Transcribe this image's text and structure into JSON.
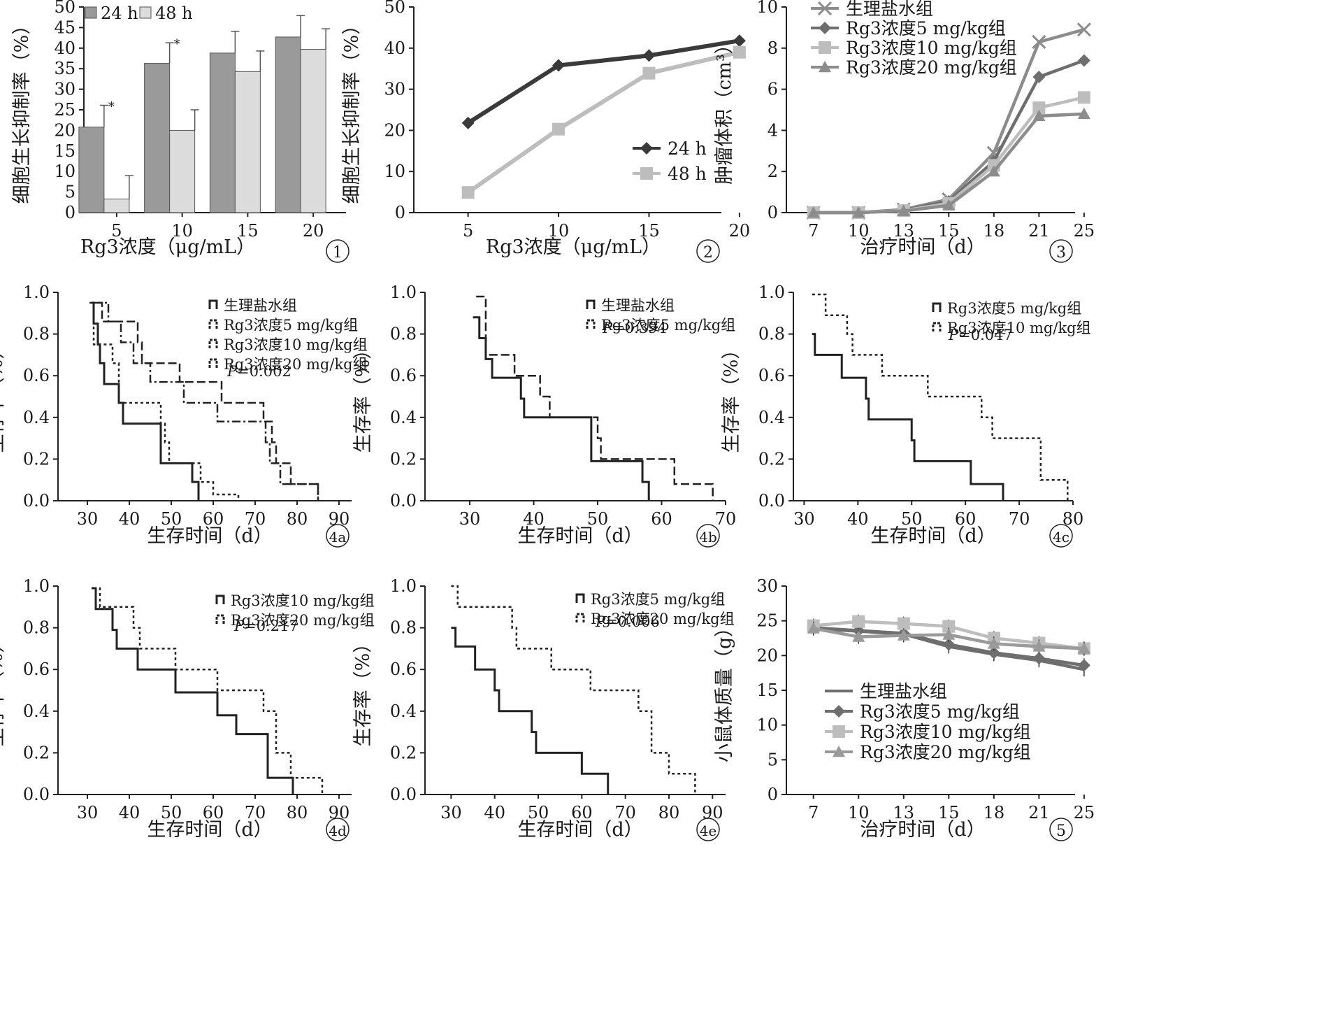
{
  "colors": {
    "dark": "#3a3a3a",
    "mid": "#6e6e6e",
    "gray": "#8c8c8c",
    "light": "#bdbdbd",
    "bar_dark": "#9a9a9a",
    "bar_light": "#dcdcdc"
  },
  "chart_data": [
    {
      "id": "1",
      "type": "bar",
      "panel_label": "①",
      "xlabel": "Rg3浓度（μg/mL）",
      "ylabel": "细胞生长抑制率（%）",
      "categories": [
        "5",
        "10",
        "15",
        "20"
      ],
      "yticks": [
        "0",
        "5",
        "10",
        "15",
        "20",
        "25",
        "30",
        "35",
        "40",
        "45",
        "50"
      ],
      "ylim": [
        0,
        50
      ],
      "legend_position": "top-left",
      "series": [
        {
          "name": "24 h",
          "values": [
            20.8,
            36.3,
            38.8,
            42.7
          ],
          "errors": [
            5.3,
            5.0,
            5.3,
            5.2
          ],
          "color": "#9a9a9a"
        },
        {
          "name": "48 h",
          "values": [
            3.3,
            20.0,
            34.3,
            39.7
          ],
          "errors": [
            5.7,
            5.0,
            5.0,
            5.0
          ],
          "color": "#dcdcdc"
        }
      ],
      "annotations": [
        {
          "text": "*",
          "category": "5",
          "series": "24 h"
        },
        {
          "text": "*",
          "category": "10",
          "series": "24 h"
        }
      ]
    },
    {
      "id": "2",
      "type": "line",
      "panel_label": "②",
      "xlabel": "Rg3浓度（μg/mL）",
      "ylabel": "细胞生长抑制率（%）",
      "x": [
        "5",
        "10",
        "15",
        "20"
      ],
      "yticks": [
        "0",
        "10",
        "20",
        "30",
        "40",
        "50"
      ],
      "ylim": [
        0,
        50
      ],
      "legend_position": "center-right",
      "series": [
        {
          "name": "24 h",
          "values": [
            21.8,
            35.8,
            38.2,
            41.8
          ],
          "color": "#3a3a3a",
          "marker": "diamond"
        },
        {
          "name": "48 h",
          "values": [
            4.9,
            20.3,
            33.9,
            39.0
          ],
          "color": "#bdbdbd",
          "marker": "square"
        }
      ]
    },
    {
      "id": "3",
      "type": "line",
      "panel_label": "③",
      "xlabel": "治疗时间（d）",
      "ylabel": "肿瘤体积（cm³）",
      "x": [
        "7",
        "10",
        "13",
        "15",
        "18",
        "21",
        "25"
      ],
      "yticks": [
        "0",
        "2",
        "4",
        "6",
        "8",
        "10"
      ],
      "ylim": [
        0,
        10
      ],
      "legend_position": "top-left",
      "series": [
        {
          "name": "生理盐水组",
          "values": [
            0,
            0,
            0.15,
            0.65,
            2.9,
            8.3,
            8.9
          ],
          "color": "#8c8c8c",
          "marker": "x"
        },
        {
          "name": "Rg3浓度5 mg/kg组",
          "values": [
            0,
            0,
            0.12,
            0.55,
            2.5,
            6.6,
            7.4
          ],
          "color": "#6e6e6e",
          "marker": "diamond"
        },
        {
          "name": "Rg3浓度10 mg/kg组",
          "values": [
            0,
            0,
            0.1,
            0.45,
            2.3,
            5.1,
            5.6
          ],
          "color": "#bdbdbd",
          "marker": "square"
        },
        {
          "name": "Rg3浓度20 mg/kg组",
          "values": [
            0,
            0,
            0.08,
            0.35,
            2.0,
            4.7,
            4.8
          ],
          "color": "#8c8c8c",
          "marker": "triangle"
        }
      ]
    },
    {
      "id": "4a",
      "type": "line",
      "panel_label": "4a",
      "xlabel": "生存时间（d）",
      "ylabel": "生存率（%）",
      "xticks": [
        "30",
        "40",
        "50",
        "60",
        "70",
        "80",
        "90"
      ],
      "xlim": [
        23,
        93
      ],
      "yticks": [
        "0.0",
        "0.2",
        "0.4",
        "0.6",
        "0.8",
        "1.0"
      ],
      "ylim": [
        0,
        1
      ],
      "legend_position": "top-right",
      "p_value": {
        "prefix": "P",
        "value": "=0.002"
      },
      "series": [
        {
          "name": "生理盐水组",
          "style": "solid",
          "points": [
            [
              31,
              0.95
            ],
            [
              31.5,
              0.85
            ],
            [
              32.5,
              0.75
            ],
            [
              33,
              0.66
            ],
            [
              34,
              0.56
            ],
            [
              37.5,
              0.47
            ],
            [
              38.5,
              0.37
            ],
            [
              47.5,
              0.18
            ],
            [
              55,
              0.09
            ],
            [
              56.5,
              0
            ]
          ]
        },
        {
          "name": "Rg3浓度5 mg/kg组",
          "style": "dash",
          "points": [
            [
              32.5,
              0.95
            ],
            [
              33.5,
              0.86
            ],
            [
              42,
              0.76
            ],
            [
              43,
              0.66
            ],
            [
              52,
              0.57
            ],
            [
              62,
              0.47
            ],
            [
              72,
              0.38
            ],
            [
              74,
              0.28
            ],
            [
              75,
              0.18
            ],
            [
              78.5,
              0.08
            ],
            [
              85,
              0
            ]
          ]
        },
        {
          "name": "Rg3浓度10 mg/kg组",
          "style": "dot",
          "points": [
            [
              30.5,
              0.95
            ],
            [
              31.5,
              0.75
            ],
            [
              36,
              0.66
            ],
            [
              37.5,
              0.47
            ],
            [
              47.5,
              0.37
            ],
            [
              48.5,
              0.28
            ],
            [
              49.5,
              0.18
            ],
            [
              57,
              0.09
            ],
            [
              60,
              0.03
            ],
            [
              66,
              0
            ]
          ]
        },
        {
          "name": "Rg3浓度20 mg/kg组",
          "style": "dashdot",
          "points": [
            [
              31.5,
              0.95
            ],
            [
              35,
              0.86
            ],
            [
              38,
              0.76
            ],
            [
              41,
              0.66
            ],
            [
              45,
              0.57
            ],
            [
              53,
              0.47
            ],
            [
              61,
              0.38
            ],
            [
              72.5,
              0.28
            ],
            [
              73.5,
              0.18
            ],
            [
              76,
              0.08
            ],
            [
              85,
              0
            ]
          ]
        }
      ]
    },
    {
      "id": "4b",
      "type": "line",
      "panel_label": "4b",
      "xlabel": "生存时间（d）",
      "ylabel": "生存率（%）",
      "xticks": [
        "30",
        "40",
        "50",
        "60",
        "70"
      ],
      "xlim": [
        23,
        70
      ],
      "yticks": [
        "0.0",
        "0.2",
        "0.4",
        "0.6",
        "0.8",
        "1.0"
      ],
      "ylim": [
        0,
        1
      ],
      "legend_position": "top-right",
      "p_value": {
        "prefix": "P",
        "value": "=0.394"
      },
      "series": [
        {
          "name": "生理盐水组",
          "style": "solid",
          "points": [
            [
              30.5,
              0.88
            ],
            [
              31.5,
              0.78
            ],
            [
              32.5,
              0.68
            ],
            [
              33.5,
              0.59
            ],
            [
              38,
              0.49
            ],
            [
              38.5,
              0.4
            ],
            [
              49,
              0.19
            ],
            [
              57,
              0.09
            ],
            [
              58,
              0
            ]
          ]
        },
        {
          "name": "Rg3浓度5 mg/kg组",
          "style": "dash",
          "points": [
            [
              31,
              0.98
            ],
            [
              32.5,
              0.7
            ],
            [
              37,
              0.6
            ],
            [
              41,
              0.5
            ],
            [
              42.5,
              0.4
            ],
            [
              50,
              0.3
            ],
            [
              50.5,
              0.2
            ],
            [
              62,
              0.08
            ],
            [
              68,
              0
            ]
          ]
        }
      ]
    },
    {
      "id": "4c",
      "type": "line",
      "panel_label": "4c",
      "xlabel": "生存时间（d）",
      "ylabel": "生存率（%）",
      "xticks": [
        "30",
        "40",
        "50",
        "60",
        "70",
        "80"
      ],
      "xlim": [
        28,
        80
      ],
      "yticks": [
        "0.0",
        "0.2",
        "0.4",
        "0.6",
        "0.8",
        "1.0"
      ],
      "ylim": [
        0,
        1
      ],
      "legend_position": "top-right",
      "p_value": {
        "prefix": "P",
        "value": "=0.047"
      },
      "series": [
        {
          "name": "Rg3浓度5 mg/kg组",
          "style": "solid",
          "points": [
            [
              31.5,
              0.8
            ],
            [
              32,
              0.7
            ],
            [
              37,
              0.59
            ],
            [
              41.5,
              0.49
            ],
            [
              42,
              0.39
            ],
            [
              50,
              0.29
            ],
            [
              50.5,
              0.19
            ],
            [
              61,
              0.08
            ],
            [
              67,
              0
            ]
          ]
        },
        {
          "name": "Rg3浓度10 mg/kg组",
          "style": "dot",
          "points": [
            [
              31.5,
              0.99
            ],
            [
              34,
              0.89
            ],
            [
              38,
              0.8
            ],
            [
              39,
              0.7
            ],
            [
              44.5,
              0.6
            ],
            [
              53,
              0.5
            ],
            [
              63,
              0.4
            ],
            [
              65,
              0.3
            ],
            [
              74,
              0.1
            ],
            [
              79,
              0
            ]
          ]
        }
      ]
    },
    {
      "id": "4d",
      "type": "line",
      "panel_label": "4d",
      "xlabel": "生存时间（d）",
      "ylabel": "生存率（%）",
      "xticks": [
        "30",
        "40",
        "50",
        "60",
        "70",
        "80",
        "90"
      ],
      "xlim": [
        23,
        93
      ],
      "yticks": [
        "0.0",
        "0.2",
        "0.4",
        "0.6",
        "0.8",
        "1.0"
      ],
      "ylim": [
        0,
        1
      ],
      "legend_position": "top-right",
      "p_value": {
        "prefix": "P",
        "value": "=0.217"
      },
      "series": [
        {
          "name": "Rg3浓度10 mg/kg组",
          "style": "solid",
          "points": [
            [
              31,
              0.99
            ],
            [
              32,
              0.89
            ],
            [
              36,
              0.79
            ],
            [
              37,
              0.7
            ],
            [
              42,
              0.6
            ],
            [
              51,
              0.49
            ],
            [
              61,
              0.38
            ],
            [
              65.5,
              0.29
            ],
            [
              73,
              0.08
            ],
            [
              79,
              0
            ]
          ]
        },
        {
          "name": "Rg3浓度20 mg/kg组",
          "style": "dot",
          "points": [
            [
              31.5,
              0.99
            ],
            [
              33,
              0.9
            ],
            [
              41,
              0.8
            ],
            [
              42.5,
              0.7
            ],
            [
              51,
              0.6
            ],
            [
              61,
              0.5
            ],
            [
              72,
              0.4
            ],
            [
              75,
              0.2
            ],
            [
              78.5,
              0.08
            ],
            [
              86,
              0
            ]
          ]
        }
      ]
    },
    {
      "id": "4e",
      "type": "line",
      "panel_label": "4e",
      "xlabel": "生存时间（d）",
      "ylabel": "生存率（%）",
      "xticks": [
        "30",
        "40",
        "50",
        "60",
        "70",
        "80",
        "90"
      ],
      "xlim": [
        24,
        93
      ],
      "yticks": [
        "0.0",
        "0.2",
        "0.4",
        "0.6",
        "0.8",
        "1.0"
      ],
      "ylim": [
        0,
        1
      ],
      "legend_position": "top-right",
      "p_value": {
        "prefix": "P",
        "value": "=0.006"
      },
      "series": [
        {
          "name": "Rg3浓度5 mg/kg组",
          "style": "solid",
          "points": [
            [
              30,
              0.8
            ],
            [
              31,
              0.71
            ],
            [
              35.5,
              0.6
            ],
            [
              40,
              0.5
            ],
            [
              41,
              0.4
            ],
            [
              48.5,
              0.3
            ],
            [
              49.5,
              0.2
            ],
            [
              60,
              0.1
            ],
            [
              66,
              0
            ]
          ]
        },
        {
          "name": "Rg3浓度20 mg/kg组",
          "style": "dot",
          "points": [
            [
              30,
              1.0
            ],
            [
              31.5,
              0.9
            ],
            [
              44,
              0.8
            ],
            [
              45,
              0.7
            ],
            [
              53,
              0.6
            ],
            [
              62,
              0.5
            ],
            [
              73,
              0.4
            ],
            [
              76,
              0.2
            ],
            [
              80,
              0.1
            ],
            [
              86,
              0
            ]
          ]
        }
      ]
    },
    {
      "id": "5",
      "type": "line",
      "panel_label": "⑤",
      "xlabel": "治疗时间（d）",
      "ylabel": "小鼠体质量（g）",
      "x": [
        "7",
        "10",
        "13",
        "15",
        "18",
        "21",
        "25"
      ],
      "yticks": [
        "0",
        "5",
        "10",
        "15",
        "20",
        "25",
        "30"
      ],
      "ylim": [
        0,
        30
      ],
      "legend_position": "bottom-left",
      "series": [
        {
          "name": "生理盐水组",
          "values": [
            23.9,
            23.5,
            23.1,
            21.3,
            20.2,
            19.3,
            18.0
          ],
          "color": "#6e6e6e",
          "marker": "none"
        },
        {
          "name": "Rg3浓度5 mg/kg组",
          "values": [
            24.0,
            23.6,
            23.2,
            21.6,
            20.4,
            19.6,
            18.6
          ],
          "color": "#6e6e6e",
          "marker": "diamond"
        },
        {
          "name": "Rg3浓度10 mg/kg组",
          "values": [
            24.3,
            24.9,
            24.6,
            24.2,
            22.5,
            21.8,
            21.0
          ],
          "color": "#bdbdbd",
          "marker": "square"
        },
        {
          "name": "Rg3浓度20 mg/kg组",
          "values": [
            23.9,
            22.7,
            22.9,
            23.0,
            21.7,
            21.3,
            21.0
          ],
          "color": "#9a9a9a",
          "marker": "triangle"
        }
      ]
    }
  ]
}
